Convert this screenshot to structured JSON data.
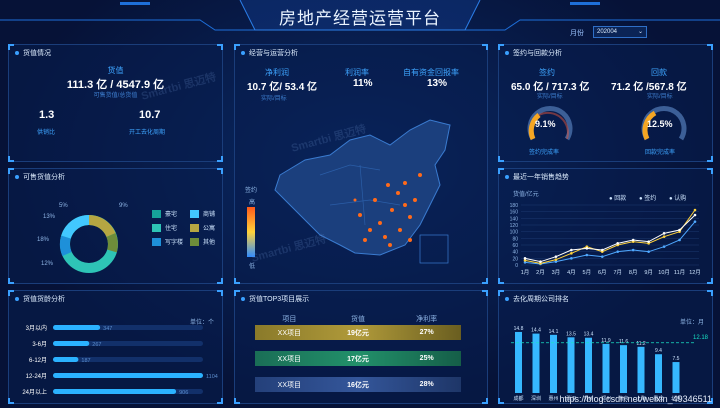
{
  "header": {
    "title": "房地产经营运营平台",
    "month_label": "月份",
    "month_value": "202004"
  },
  "panels": {
    "stock": {
      "title": "货值情况",
      "value_label": "货值",
      "value": "111.3 亿 / 4547.9 亿",
      "value_sub": "可售货值/总货值",
      "ratio": "1.3",
      "ratio_label": "供销比",
      "period": "10.7",
      "period_label": "开工去化周期"
    },
    "ops": {
      "title": "经营与运营分析",
      "profit_label": "净利润",
      "profit": "10.7 亿/ 53.4 亿",
      "profit_sub": "实际/目标",
      "margin_label": "利润率",
      "margin": "11%",
      "roi_label": "自有资金回报率",
      "roi": "13%",
      "legend_title": "签约",
      "legend_high": "高",
      "legend_low": "低"
    },
    "sign": {
      "title": "签约与回款分析",
      "sign_label": "签约",
      "sign_value": "65.0 亿 / 717.3 亿",
      "sign_sub": "实际/目标",
      "sign_pct": "9.1%",
      "sign_pct_label": "签约完成率",
      "pay_label": "回款",
      "pay_value": "71.2 亿 /567.8 亿",
      "pay_sub": "实际/目标",
      "pay_pct": "12.5%",
      "pay_pct_label": "回款完成率"
    },
    "forsale": {
      "title": "可售货值分析",
      "labels": [
        "5%",
        "9%",
        "13%",
        "18%",
        "12%"
      ],
      "legend": [
        "豪宅",
        "住宅",
        "写字楼",
        "商铺",
        "公寓",
        "其他"
      ],
      "legend_colors": [
        "#16a39a",
        "#2ec4b6",
        "#1e90d9",
        "#42c8ff",
        "#b5a642",
        "#6d8c3a"
      ]
    },
    "trend": {
      "title": "最近一年销售趋势",
      "unit": "货值/亿元",
      "legend": [
        "回款",
        "签约",
        "认购"
      ]
    },
    "aging": {
      "title": "货值货龄分析",
      "unit": "单位：个",
      "rows": [
        {
          "label": "3月以内",
          "value": "347"
        },
        {
          "label": "3-6月",
          "value": "267"
        },
        {
          "label": "6-12月",
          "value": "187"
        },
        {
          "label": "12-24月",
          "value": "1104"
        },
        {
          "label": "24月以上",
          "value": "906"
        }
      ]
    },
    "top3": {
      "title": "货值TOP3项目展示",
      "headers": [
        "项目",
        "货值",
        "净利率"
      ],
      "rows": [
        {
          "name": "XX项目",
          "value": "19亿元",
          "rate": "27%"
        },
        {
          "name": "XX项目",
          "value": "17亿元",
          "rate": "25%"
        },
        {
          "name": "XX项目",
          "value": "16亿元",
          "rate": "28%"
        }
      ]
    },
    "rank": {
      "title": "去化周期公司排名",
      "unit": "单位：月",
      "avg": "12.18"
    }
  },
  "watermark": "Smartbi 思迈特",
  "footer": "https://blog.csdn.net/weixin_49346511",
  "chart_data": [
    {
      "type": "line",
      "title": "最近一年销售趋势",
      "ylabel": "货值/亿元",
      "categories": [
        "1月",
        "2月",
        "3月",
        "4月",
        "5月",
        "6月",
        "7月",
        "8月",
        "9月",
        "10月",
        "11月",
        "12月"
      ],
      "ylim": [
        0,
        180
      ],
      "series": [
        {
          "name": "回款",
          "values": [
            8,
            3,
            10,
            20,
            30,
            25,
            40,
            45,
            40,
            55,
            75,
            130
          ]
        },
        {
          "name": "签约",
          "values": [
            14,
            5,
            16,
            35,
            55,
            40,
            60,
            70,
            65,
            85,
            100,
            165
          ]
        },
        {
          "name": "认购",
          "values": [
            20,
            10,
            25,
            45,
            50,
            45,
            65,
            75,
            70,
            95,
            105,
            150
          ]
        }
      ]
    },
    {
      "type": "bar",
      "title": "货值货龄分析",
      "categories": [
        "3月以内",
        "3-6月",
        "6-12月",
        "12-24月",
        "24月以上"
      ],
      "values": [
        347,
        267,
        187,
        1104,
        906
      ]
    },
    {
      "type": "bar",
      "title": "去化周期公司排名",
      "categories": [
        "成都",
        "深圳",
        "惠州",
        "武汉",
        "苏州",
        "郑州",
        "南京",
        "上海",
        "重庆",
        "北京"
      ],
      "values": [
        14.8,
        14.4,
        14.1,
        13.5,
        13.4,
        11.9,
        11.6,
        11.2,
        9.4,
        7.5
      ]
    },
    {
      "type": "pie",
      "title": "可售货值分析",
      "categories": [
        "豪宅",
        "住宅",
        "写字楼",
        "商铺",
        "公寓",
        "其他"
      ],
      "values": [
        5,
        9,
        13,
        18,
        12,
        43
      ]
    }
  ]
}
